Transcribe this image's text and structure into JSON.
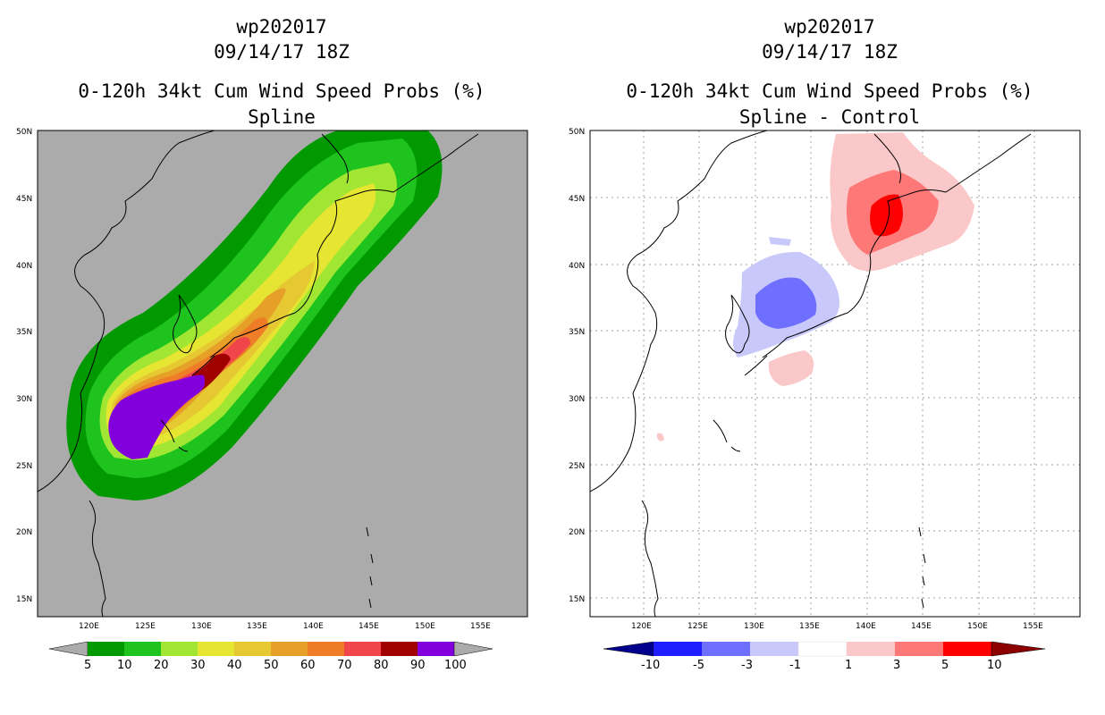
{
  "left": {
    "title_line1": "wp202017",
    "title_line2": "09/14/17 18Z",
    "title_line3": "0-120h 34kt Cum Wind Speed Probs (%)",
    "title_line4": "Spline"
  },
  "right": {
    "title_line1": "wp202017",
    "title_line2": "09/14/17 18Z",
    "title_line3": "0-120h 34kt Cum Wind Speed Probs (%)",
    "title_line4": "Spline - Control"
  },
  "axes": {
    "x_ticks": [
      "120E",
      "125E",
      "130E",
      "135E",
      "140E",
      "145E",
      "150E",
      "155E"
    ],
    "y_ticks": [
      "15N",
      "20N",
      "25N",
      "30N",
      "35N",
      "40N",
      "45N",
      "50N"
    ],
    "lon_range": [
      115.5,
      159.0
    ],
    "lat_range": [
      13.5,
      50.0
    ]
  },
  "colorbars": {
    "left": {
      "labels": [
        "5",
        "10",
        "20",
        "30",
        "40",
        "50",
        "60",
        "70",
        "80",
        "90",
        "100"
      ],
      "colors": [
        "#ababab",
        "#009a00",
        "#1ec31e",
        "#a0e632",
        "#e6e632",
        "#e6c832",
        "#e6a028",
        "#ef7d28",
        "#f0464b",
        "#a00000",
        "#8200dc",
        "#ababab"
      ]
    },
    "right": {
      "labels": [
        "-10",
        "-5",
        "-3",
        "-1",
        "1",
        "3",
        "5",
        "10"
      ],
      "colors": [
        "#00008c",
        "#1e1eff",
        "#6e6eff",
        "#c8c8fa",
        "#ffffff",
        "#fac8c8",
        "#ff7878",
        "#ff0000",
        "#8c0000"
      ]
    }
  },
  "colors": {
    "ocean_left": "#ababab",
    "ocean_right": "#ffffff",
    "coast": "#000000",
    "grid": "#a0a0a0"
  }
}
